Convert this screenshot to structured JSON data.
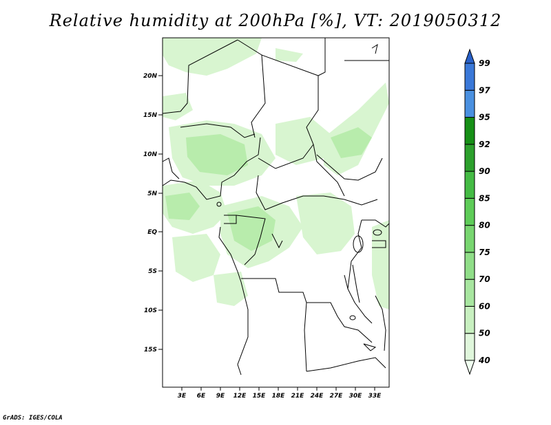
{
  "title": "Relative humidity at 200hPa [%], VT: 2019050312",
  "credit": "GrADS: IGES/COLA",
  "map": {
    "lat_labels": [
      "20N",
      "15N",
      "10N",
      "5N",
      "EQ",
      "5S",
      "10S",
      "15S"
    ],
    "lon_labels": [
      "3E",
      "6E",
      "9E",
      "12E",
      "15E",
      "18E",
      "21E",
      "24E",
      "27E",
      "30E",
      "33E"
    ],
    "variable": "Relative humidity",
    "units": "%"
  },
  "colorbar": {
    "levels": [
      "40",
      "50",
      "60",
      "70",
      "75",
      "80",
      "85",
      "90",
      "92",
      "95",
      "97",
      "99"
    ],
    "colors": [
      "#f0fff0",
      "#e0f7dc",
      "#c8f0c0",
      "#a8e6a0",
      "#90de88",
      "#78d670",
      "#5ecc58",
      "#44bb44",
      "#2ca02c",
      "#168f16",
      "#4a90e0",
      "#3a78d8",
      "#2860c8"
    ]
  },
  "colors": {
    "land_outline": "#000000",
    "humidity_light": "#d8f5d0",
    "humidity_mid": "#b8ecac"
  }
}
